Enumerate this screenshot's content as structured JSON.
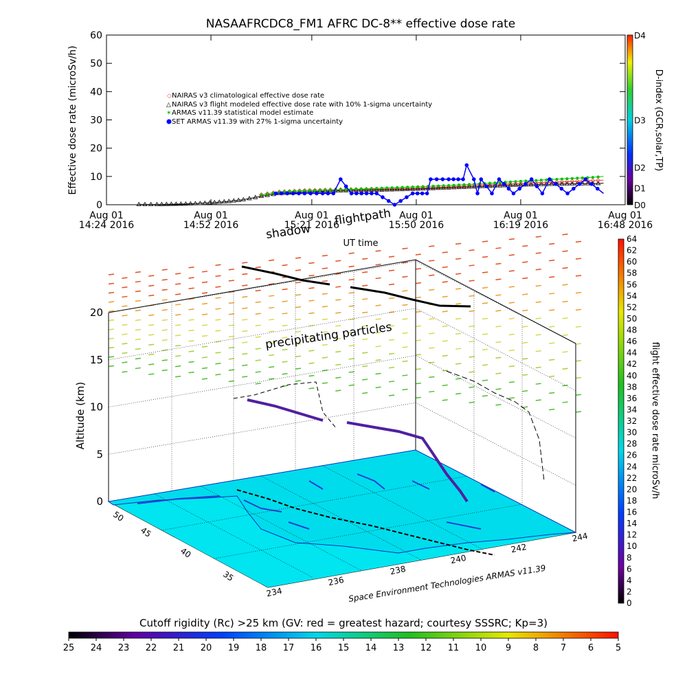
{
  "colors": {
    "ocean": "#00e5f0",
    "land": "#00d8e8",
    "armas": "#00c000",
    "set_armas": "#0000ff",
    "nairas_clim": "#ff4040",
    "nairas_flight": "#000000"
  },
  "chart_data": [
    {
      "type": "line",
      "title": "NASAAFRCDC8_FM1 AFRC DC-8** effective dose rate",
      "ylabel": "Effective dose rate (microSv/h)",
      "ylim": [
        0,
        60
      ],
      "y_ticks": [
        "0",
        "10",
        "20",
        "30",
        "40",
        "50",
        "60"
      ],
      "x_ticks": [
        {
          "line1": "Aug 01",
          "line2": "14:24 2016"
        },
        {
          "line1": "Aug 01",
          "line2": "14:52 2016"
        },
        {
          "line1": "Aug 01",
          "line2": "15:21 2016"
        },
        {
          "line1": "Aug 01",
          "line2": "15:50 2016"
        },
        {
          "line1": "Aug 01",
          "line2": "16:19 2016"
        },
        {
          "line1": "Aug 01",
          "line2": "16:48 2016"
        }
      ],
      "xlabel": "UT time",
      "legend": [
        "NAIRAS v3 climatological effective dose rate",
        "NAIRAS v3 flight modeled effective dose rate with 10% 1-sigma uncertainty",
        "ARMAS v11.39 statistical model estimate",
        "SET ARMAS v11.39 with 27% 1-sigma uncertainty"
      ],
      "dindex": {
        "label": "D-index (GCR,solar,TP)",
        "ticks": [
          "D0",
          "D1",
          "D2",
          "D3",
          "D4"
        ]
      },
      "x_minutes_since_first_tick": [
        0,
        29,
        57,
        86,
        115,
        144
      ],
      "series": [
        {
          "name": "NAIRAS v3 climatological effective dose rate",
          "x": [
            43,
            48,
            55,
            65,
            75,
            85,
            95,
            105,
            115,
            125,
            135,
            138
          ],
          "values": [
            3.5,
            4.5,
            5.0,
            5.3,
            5.5,
            5.8,
            6.3,
            7.0,
            7.5,
            8.0,
            8.5,
            8.7
          ]
        },
        {
          "name": "NAIRAS v3 flight modeled effective dose rate with 10% 1-sigma uncertainty",
          "x": [
            9,
            14,
            18,
            22,
            26,
            30,
            34,
            38,
            43,
            48,
            55,
            65,
            75,
            85,
            95,
            105,
            115,
            125,
            135,
            138
          ],
          "values": [
            0.1,
            0.1,
            0.2,
            0.3,
            0.5,
            0.8,
            1.2,
            1.8,
            3.0,
            4.0,
            4.5,
            5.0,
            5.2,
            5.5,
            6.0,
            6.5,
            7.0,
            7.3,
            7.5,
            7.6
          ]
        },
        {
          "name": "ARMAS v11.39 statistical model estimate",
          "x": [
            43,
            48,
            55,
            65,
            75,
            85,
            95,
            105,
            115,
            125,
            135,
            138
          ],
          "values": [
            3.5,
            4.5,
            5.0,
            5.3,
            5.8,
            6.3,
            6.8,
            7.5,
            8.3,
            9.0,
            9.7,
            10.0
          ]
        },
        {
          "name": "SET ARMAS v11.39 with 27% 1-sigma uncertainty",
          "x": [
            47,
            55,
            60,
            63,
            65,
            68,
            75,
            80,
            85,
            89,
            90,
            95,
            99,
            100,
            102,
            103,
            104,
            107,
            109,
            113,
            118,
            121,
            123,
            128,
            133,
            138
          ],
          "values": [
            4.0,
            4.0,
            4.0,
            4.0,
            9.0,
            4.0,
            4.0,
            0.0,
            4.0,
            4.0,
            9.0,
            9.0,
            9.0,
            14.0,
            9.0,
            4.0,
            9.0,
            4.0,
            9.0,
            4.0,
            9.0,
            4.0,
            9.0,
            4.0,
            9.0,
            4.0
          ]
        }
      ]
    },
    {
      "type": "heatmap",
      "ylabel": "Altitude (km)",
      "z_ticks": [
        "0",
        "5",
        "10",
        "15",
        "20"
      ],
      "lat_ticks": [
        "35",
        "40",
        "45",
        "50"
      ],
      "lon_ticks": [
        "234",
        "236",
        "238",
        "240",
        "242",
        "244"
      ],
      "annotations": [
        "shadow",
        "flightpath",
        "precipitating particles"
      ],
      "credit": "Space Environment Technologies ARMAS v11.39",
      "colorbar": {
        "label": "flight effective dose rate microSv/h",
        "ticks": [
          "0",
          "2",
          "4",
          "6",
          "8",
          "10",
          "12",
          "14",
          "16",
          "18",
          "20",
          "22",
          "24",
          "26",
          "28",
          "30",
          "32",
          "34",
          "36",
          "38",
          "40",
          "42",
          "44",
          "46",
          "48",
          "50",
          "52",
          "54",
          "56",
          "58",
          "60",
          "62",
          "64"
        ]
      }
    },
    {
      "type": "heatmap",
      "title": "Cutoff rigidity (Rc) >25 km (GV: red = greatest hazard; courtesy SSSRC; Kp=3)",
      "colorbar_ticks": [
        "25",
        "24",
        "23",
        "22",
        "21",
        "20",
        "19",
        "18",
        "17",
        "16",
        "15",
        "14",
        "13",
        "12",
        "11",
        "10",
        "9",
        "8",
        "7",
        "6",
        "5"
      ]
    }
  ]
}
